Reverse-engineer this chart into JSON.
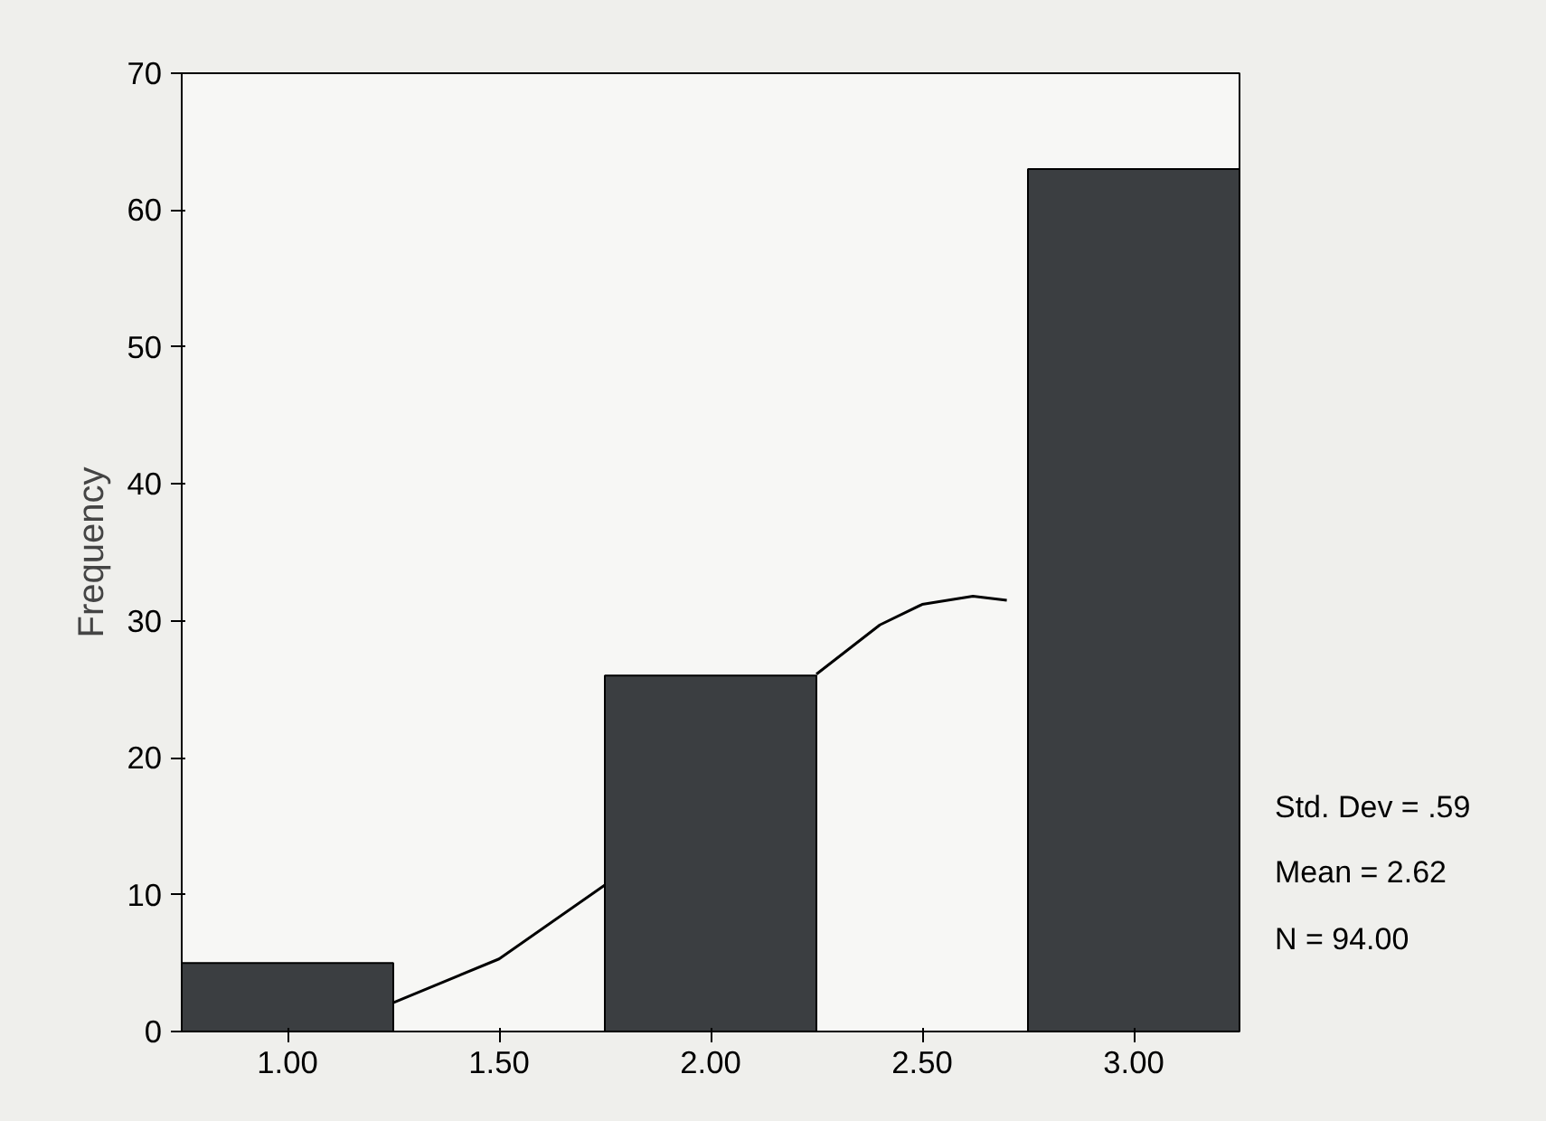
{
  "chart_data": {
    "type": "histogram",
    "ylabel": "Frequency",
    "bins": [
      0.75,
      1.25,
      1.75,
      2.25,
      2.75,
      3.25
    ],
    "values": [
      5,
      0,
      26,
      0,
      63
    ],
    "color": "#3b3e41",
    "series": [
      {
        "type": "line",
        "color": "#000000",
        "x": [
          1.25,
          1.5,
          1.75,
          2.0,
          2.25,
          2.4,
          2.5,
          2.62,
          2.7
        ],
        "values": [
          2.1,
          5.3,
          10.7,
          null,
          26.1,
          29.7,
          31.2,
          31.8,
          31.5
        ]
      }
    ],
    "xlim": [
      0.75,
      3.25
    ],
    "xticks": [
      {
        "value": 1,
        "label": "1.00"
      },
      {
        "value": 1.5,
        "label": "1.50"
      },
      {
        "value": 2,
        "label": "2.00"
      },
      {
        "value": 2.5,
        "label": "2.50"
      },
      {
        "value": 3,
        "label": "3.00"
      }
    ],
    "ylim": [
      0,
      70
    ],
    "yticks": [
      0,
      10,
      20,
      30,
      40,
      50,
      60,
      70
    ],
    "grid": false,
    "annotations": [
      "Std. Dev = .59",
      "Mean = 2.62",
      "N = 94.00"
    ]
  }
}
